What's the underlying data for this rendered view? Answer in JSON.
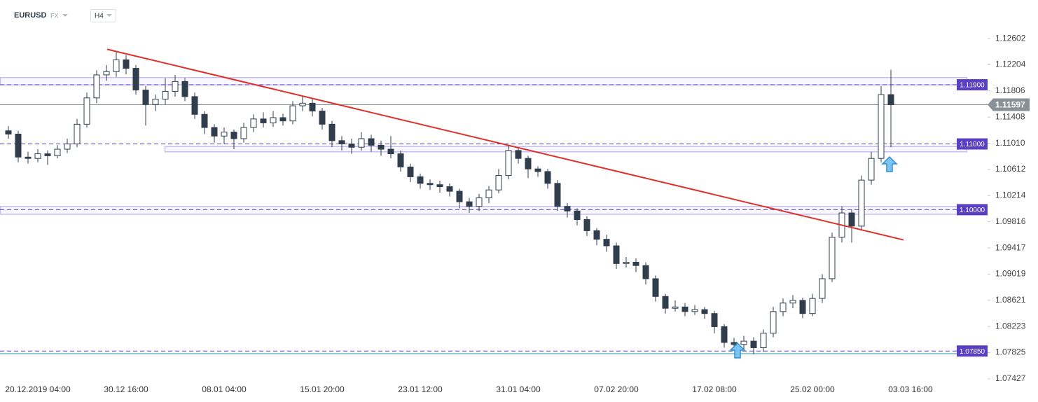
{
  "chart_data": {
    "type": "candlestick",
    "title": "EURUSD",
    "market": "FX",
    "interval": "H4",
    "categories": [
      null,
      null,
      null,
      "20.12.2019 04:00",
      null,
      null,
      null,
      null,
      null,
      null,
      null,
      null,
      "30.12 16:00",
      null,
      null,
      null,
      null,
      null,
      null,
      null,
      null,
      null,
      "08.01 04:00",
      null,
      null,
      null,
      null,
      null,
      null,
      null,
      null,
      null,
      "15.01 20:00",
      null,
      null,
      null,
      null,
      null,
      null,
      null,
      null,
      null,
      "23.01 12:00",
      null,
      null,
      null,
      null,
      null,
      null,
      null,
      null,
      null,
      "31.01 04:00",
      null,
      null,
      null,
      null,
      null,
      null,
      null,
      null,
      null,
      "07.02 20:00",
      null,
      null,
      null,
      null,
      null,
      null,
      null,
      null,
      null,
      "17.02 08:00",
      null,
      null,
      null,
      null,
      null,
      null,
      null,
      null,
      null,
      "25.02 00:00",
      null,
      null,
      null,
      null,
      null,
      null,
      null,
      null,
      null,
      "03.03 16:00",
      null
    ],
    "open": [
      1.112,
      1.1115,
      1.108,
      1.1078,
      1.1085,
      1.1082,
      1.1092,
      1.11,
      1.113,
      1.117,
      1.1205,
      1.121,
      1.1228,
      1.1215,
      1.1182,
      1.116,
      1.1168,
      1.118,
      1.1195,
      1.1172,
      1.1145,
      1.1125,
      1.1112,
      1.1118,
      1.1108,
      1.1125,
      1.1138,
      1.1132,
      1.114,
      1.1135,
      1.1158,
      1.1162,
      1.115,
      1.113,
      1.1105,
      1.11,
      1.1095,
      1.1108,
      1.1098,
      1.1092,
      1.1085,
      1.1065,
      1.105,
      1.104,
      1.1038,
      1.1035,
      1.1028,
      1.1012,
      1.1005,
      1.1018,
      1.103,
      1.1052,
      1.109,
      1.1078,
      1.1062,
      1.1058,
      1.104,
      1.1005,
      1.0998,
      1.0985,
      1.0968,
      1.0955,
      1.0945,
      1.0918,
      1.092,
      1.0915,
      1.0895,
      1.0868,
      1.085,
      1.0852,
      1.0845,
      1.0848,
      1.0842,
      1.0822,
      1.0798,
      1.0795,
      1.08,
      1.079,
      1.0812,
      1.0845,
      1.0858,
      1.0862,
      1.0842,
      1.0865,
      1.0895,
      1.0958,
      1.0995,
      1.0975,
      1.1045,
      1.1078,
      1.1175,
      null,
      null,
      null
    ],
    "high": [
      1.1127,
      1.112,
      1.1088,
      1.1092,
      1.109,
      1.1098,
      1.1108,
      1.1138,
      1.1178,
      1.1212,
      1.122,
      1.124,
      1.1235,
      1.122,
      1.1188,
      1.1175,
      1.12,
      1.1205,
      1.12,
      1.1178,
      1.115,
      1.113,
      1.1125,
      1.1122,
      1.1132,
      1.1145,
      1.1148,
      1.115,
      1.1146,
      1.1165,
      1.1172,
      1.1168,
      1.1155,
      1.1135,
      1.1112,
      1.1108,
      1.1118,
      1.1114,
      1.1105,
      1.1112,
      1.109,
      1.107,
      1.1055,
      1.1046,
      1.1044,
      1.104,
      1.1032,
      1.1018,
      1.1024,
      1.1036,
      1.1062,
      1.1098,
      1.1095,
      1.1082,
      1.1066,
      1.1062,
      1.1045,
      1.101,
      1.1002,
      1.099,
      1.0972,
      1.0962,
      1.095,
      1.0928,
      1.0926,
      1.092,
      1.09,
      1.0872,
      1.0862,
      1.0858,
      1.0855,
      1.0852,
      1.0846,
      1.0826,
      1.0805,
      1.0808,
      1.0806,
      1.0818,
      1.0852,
      1.0865,
      1.087,
      1.0866,
      1.0872,
      1.0902,
      1.0965,
      1.1005,
      1.1,
      1.1052,
      1.1088,
      1.1188,
      1.1213,
      null,
      null,
      null
    ],
    "low": [
      1.1108,
      1.1072,
      1.107,
      1.1072,
      1.1068,
      1.1078,
      1.1086,
      1.1095,
      1.1125,
      1.1162,
      1.1196,
      1.1202,
      1.1206,
      1.1175,
      1.1128,
      1.115,
      1.116,
      1.1172,
      1.1165,
      1.1138,
      1.1115,
      1.1102,
      1.11,
      1.1092,
      1.1102,
      1.1118,
      1.1125,
      1.1126,
      1.1128,
      1.113,
      1.115,
      1.1142,
      1.1122,
      1.1095,
      1.109,
      1.1085,
      1.109,
      1.1088,
      1.1082,
      1.1078,
      1.1058,
      1.1042,
      1.1032,
      1.103,
      1.1026,
      1.102,
      1.1002,
      1.0995,
      1.0998,
      1.101,
      1.1025,
      1.1046,
      1.107,
      1.1048,
      1.105,
      1.1032,
      1.0998,
      1.0988,
      1.0976,
      1.096,
      1.0946,
      1.0936,
      1.091,
      1.0912,
      1.0905,
      1.0886,
      1.086,
      1.0842,
      1.0845,
      1.0838,
      1.084,
      1.0834,
      1.0812,
      1.079,
      1.0788,
      1.0786,
      1.078,
      1.0784,
      1.0806,
      1.0838,
      1.085,
      1.0835,
      1.0838,
      1.0858,
      1.089,
      1.095,
      1.095,
      1.0968,
      1.1038,
      1.1072,
      1.1095,
      null,
      null,
      null
    ],
    "close": [
      1.1115,
      1.108,
      1.1078,
      1.1085,
      1.1082,
      1.1092,
      1.11,
      1.113,
      1.117,
      1.1205,
      1.121,
      1.1228,
      1.1215,
      1.1182,
      1.116,
      1.1168,
      1.118,
      1.1195,
      1.1172,
      1.1145,
      1.1125,
      1.1112,
      1.1118,
      1.1108,
      1.1125,
      1.1138,
      1.1132,
      1.114,
      1.1135,
      1.1158,
      1.1162,
      1.115,
      1.113,
      1.1105,
      1.11,
      1.1095,
      1.1108,
      1.1098,
      1.1092,
      1.1085,
      1.1065,
      1.105,
      1.104,
      1.1038,
      1.1035,
      1.1028,
      1.1012,
      1.1005,
      1.1018,
      1.103,
      1.1052,
      1.109,
      1.1078,
      1.1062,
      1.1058,
      1.104,
      1.1005,
      1.0998,
      1.0985,
      1.0968,
      1.0955,
      1.0945,
      1.0918,
      1.092,
      1.0915,
      1.0895,
      1.0868,
      1.085,
      1.0852,
      1.0845,
      1.0848,
      1.0842,
      1.0822,
      1.0798,
      1.0795,
      1.08,
      1.079,
      1.0812,
      1.0845,
      1.0858,
      1.0862,
      1.0842,
      1.0865,
      1.0895,
      1.0958,
      1.0995,
      1.0975,
      1.1045,
      1.1078,
      1.1175,
      1.11597,
      null,
      null,
      null
    ],
    "up_color": "#ffffff",
    "down_color": "#2f3d4c",
    "wick_color": "#2f3d4c",
    "ylim": [
      1.0733,
      1.1287
    ],
    "yticks": [
      1.12602,
      1.12204,
      1.11806,
      1.11408,
      {
        "value": 1.1101,
        "label": "1.11010"
      },
      1.10612,
      1.10214,
      1.09816,
      1.09417,
      1.09019,
      1.08621,
      1.08223,
      1.07825,
      1.07427
    ],
    "levels": [
      {
        "value": 1.119,
        "label": "1.11900"
      },
      {
        "value": 1.11,
        "label": "1.11000"
      },
      {
        "value": 1.1,
        "label": "1.10000"
      },
      {
        "value": 1.0785,
        "label": "1.07850"
      }
    ],
    "level_color": "#5b3fc2",
    "zones": [
      [
        1.119,
        1.1201
      ],
      [
        1.1088,
        1.1096
      ],
      [
        1.0993,
        1.1005
      ]
    ],
    "zone_color": "#c9bdf2",
    "support_line": 1.0781,
    "support_color": "#1f9aa6",
    "last_price": 1.11597,
    "last_price_color": "#8a9097",
    "trendline": [
      1.1244,
      1.0954
    ],
    "trend_color": "#e0302a"
  }
}
